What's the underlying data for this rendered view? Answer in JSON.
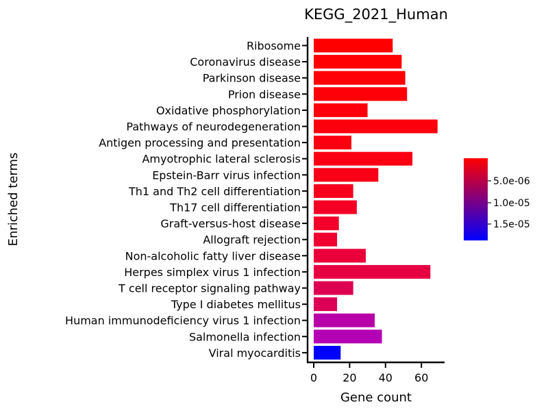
{
  "chart_data": {
    "type": "bar",
    "orientation": "horizontal",
    "title": "KEGG_2021_Human",
    "xlabel": "Gene count",
    "ylabel": "Enriched terms",
    "xlim": [
      -3,
      72
    ],
    "xticks": [
      0,
      20,
      40,
      60
    ],
    "grid": false,
    "categories": [
      "Ribosome",
      "Coronavirus disease",
      "Parkinson disease",
      "Prion disease",
      "Oxidative phosphorylation",
      "Pathways of neurodegeneration",
      "Antigen processing and presentation",
      "Amyotrophic lateral sclerosis",
      "Epstein-Barr virus infection",
      "Th1 and Th2 cell differentiation",
      "Th17 cell differentiation",
      "Graft-versus-host disease",
      "Allograft rejection",
      "Non-alcoholic fatty liver disease",
      "Herpes simplex virus 1 infection",
      "T cell receptor signaling pathway",
      "Type I diabetes mellitus",
      "Human immunodeficiency virus 1 infection",
      "Salmonella infection",
      "Viral myocarditis"
    ],
    "values": [
      44,
      49,
      51,
      52,
      30,
      69,
      21,
      55,
      36,
      22,
      24,
      14,
      13,
      29,
      65,
      22,
      13,
      34,
      38,
      15
    ],
    "colors": [
      "#ff0000",
      "#ff0003",
      "#fe0005",
      "#fe0008",
      "#fd000b",
      "#fc000d",
      "#fc0010",
      "#fb0013",
      "#f90018",
      "#f7001e",
      "#f40025",
      "#f2002a",
      "#f00030",
      "#ea0039",
      "#e60042",
      "#de0050",
      "#dc0055",
      "#b800a8",
      "#b400b5",
      "#0000ff"
    ],
    "colorbar": {
      "label_ticks": [
        "5.0e-06",
        "1.0e-05",
        "1.5e-05"
      ],
      "color_top": "#ff0000",
      "color_bottom": "#0000ff"
    }
  }
}
